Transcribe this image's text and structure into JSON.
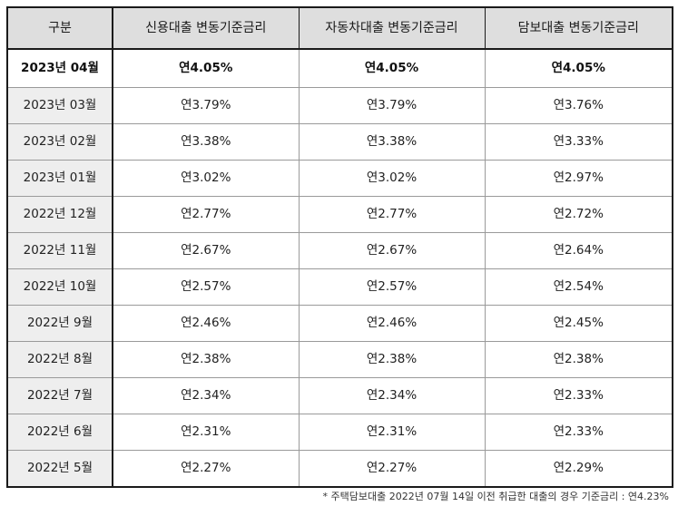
{
  "table": {
    "headers": [
      "구분",
      "신용대출 변동기준금리",
      "자동차대출 변동기준금리",
      "담보대출 변동기준금리"
    ],
    "rows": [
      [
        "2023년 04월",
        "연4.05%",
        "연4.05%",
        "연4.05%"
      ],
      [
        "2023년 03월",
        "연3.79%",
        "연3.79%",
        "연3.76%"
      ],
      [
        "2023년 02월",
        "연3.38%",
        "연3.38%",
        "연3.33%"
      ],
      [
        "2023년 01월",
        "연3.02%",
        "연3.02%",
        "연2.97%"
      ],
      [
        "2022년 12월",
        "연2.77%",
        "연2.77%",
        "연2.72%"
      ],
      [
        "2022년 11월",
        "연2.67%",
        "연2.67%",
        "연2.64%"
      ],
      [
        "2022년 10월",
        "연2.57%",
        "연2.57%",
        "연2.54%"
      ],
      [
        "2022년 9월",
        "연2.46%",
        "연2.46%",
        "연2.45%"
      ],
      [
        "2022년 8월",
        "연2.38%",
        "연2.38%",
        "연2.38%"
      ],
      [
        "2022년 7월",
        "연2.34%",
        "연2.34%",
        "연2.33%"
      ],
      [
        "2022년 6월",
        "연2.31%",
        "연2.31%",
        "연2.33%"
      ],
      [
        "2022년 5월",
        "연2.27%",
        "연2.27%",
        "연2.29%"
      ]
    ]
  },
  "footnote": "* 주택담보대출 2022년 07월 14일 이전 취급한 대출의 경우 기준금리 : 연4.23%"
}
